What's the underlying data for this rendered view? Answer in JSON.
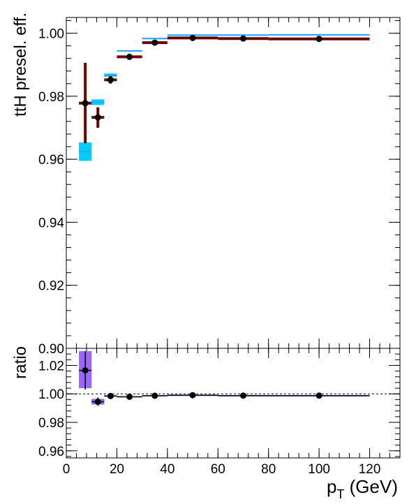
{
  "chart_data": {
    "type": "scatter",
    "x_axis": {
      "label": "p",
      "label_sub": "T",
      "label_units": " (GeV)",
      "range": [
        0,
        132
      ],
      "major_ticks": [
        0,
        20,
        40,
        60,
        80,
        100,
        120
      ],
      "tick_labels": [
        "0",
        "20",
        "40",
        "60",
        "80",
        "100",
        "120"
      ],
      "minor_step": 4
    },
    "top_panel": {
      "ylabel": "ttH presel. eff.",
      "ylim": [
        0.9,
        1.005
      ],
      "major_ticks": [
        0.9,
        0.92,
        0.94,
        0.96,
        0.98,
        1.0
      ],
      "tick_labels": [
        "0.90",
        "0.92",
        "0.94",
        "0.96",
        "0.98",
        "1.00"
      ],
      "minor_step": 0.004,
      "series": [
        {
          "role": "reference-band",
          "color": "#00ccff",
          "bins": [
            {
              "x_lo": 5,
              "x_hi": 10,
              "y_lo": 0.9595,
              "y_hi": 0.9653
            },
            {
              "x_lo": 10,
              "x_hi": 15,
              "y_lo": 0.9772,
              "y_hi": 0.979
            },
            {
              "x_lo": 15,
              "x_hi": 20,
              "y_lo": 0.9862,
              "y_hi": 0.9872
            },
            {
              "x_lo": 20,
              "x_hi": 30,
              "y_lo": 0.9942,
              "y_hi": 0.9946
            },
            {
              "x_lo": 30,
              "x_hi": 40,
              "y_lo": 0.9982,
              "y_hi": 0.9985
            },
            {
              "x_lo": 40,
              "x_hi": 60,
              "y_lo": 0.9993,
              "y_hi": 0.9996
            },
            {
              "x_lo": 60,
              "x_hi": 80,
              "y_lo": 0.9993,
              "y_hi": 0.9996
            },
            {
              "x_lo": 80,
              "x_hi": 120,
              "y_lo": 0.9994,
              "y_hi": 0.9997
            }
          ],
          "line_color": "#3399ff"
        },
        {
          "role": "measurement",
          "band_color": "#6a0000",
          "marker_color": "#000000",
          "points": [
            {
              "x": 7.5,
              "x_lo": 5,
              "x_hi": 10,
              "y": 0.9778,
              "y_lo": 0.9651,
              "y_hi": 0.9906
            },
            {
              "x": 12.5,
              "x_lo": 10,
              "x_hi": 15,
              "y": 0.9733,
              "y_lo": 0.97,
              "y_hi": 0.9765
            },
            {
              "x": 17.5,
              "x_lo": 15,
              "x_hi": 20,
              "y": 0.9852,
              "y_lo": 0.984,
              "y_hi": 0.9864
            },
            {
              "x": 25,
              "x_lo": 20,
              "x_hi": 30,
              "y": 0.9925,
              "y_lo": 0.9921,
              "y_hi": 0.9929
            },
            {
              "x": 35,
              "x_lo": 30,
              "x_hi": 40,
              "y": 0.997,
              "y_lo": 0.9967,
              "y_hi": 0.9973
            },
            {
              "x": 50,
              "x_lo": 40,
              "x_hi": 60,
              "y": 0.9985,
              "y_lo": 0.9983,
              "y_hi": 0.9987
            },
            {
              "x": 70,
              "x_lo": 60,
              "x_hi": 80,
              "y": 0.9983,
              "y_lo": 0.9981,
              "y_hi": 0.9985
            },
            {
              "x": 100,
              "x_lo": 80,
              "x_hi": 120,
              "y": 0.9982,
              "y_lo": 0.998,
              "y_hi": 0.9984
            }
          ]
        }
      ]
    },
    "ratio_panel": {
      "ylabel": "ratio",
      "ylim": [
        0.955,
        1.032
      ],
      "major_ticks": [
        0.96,
        0.98,
        1.0,
        1.02
      ],
      "tick_labels": [
        "0.96",
        "0.98",
        "1.00",
        "1.02"
      ],
      "minor_step": 0.004,
      "reference_line": 1.0,
      "band_color": "#9966ff",
      "points": [
        {
          "x": 7.5,
          "x_lo": 5,
          "x_hi": 10,
          "y": 1.0165,
          "y_lo": 1.003,
          "y_hi": 1.03,
          "band_lo": 1.004,
          "band_hi": 1.03
        },
        {
          "x": 12.5,
          "x_lo": 10,
          "x_hi": 15,
          "y": 0.9945,
          "y_lo": 0.9915,
          "y_hi": 0.9975,
          "band_lo": 0.9925,
          "band_hi": 0.9965
        },
        {
          "x": 17.5,
          "x_lo": 15,
          "x_hi": 20,
          "y": 0.9985,
          "y_lo": 0.9975,
          "y_hi": 0.9995,
          "band_lo": 0.998,
          "band_hi": 0.999
        },
        {
          "x": 25,
          "x_lo": 20,
          "x_hi": 30,
          "y": 0.998,
          "y_lo": 0.9975,
          "y_hi": 0.9985,
          "band_lo": 0.9978,
          "band_hi": 0.9982
        },
        {
          "x": 35,
          "x_lo": 30,
          "x_hi": 40,
          "y": 0.9987,
          "y_lo": 0.9983,
          "y_hi": 0.9991,
          "band_lo": 0.9985,
          "band_hi": 0.9989
        },
        {
          "x": 50,
          "x_lo": 40,
          "x_hi": 60,
          "y": 0.9991,
          "y_lo": 0.9989,
          "y_hi": 0.9993,
          "band_lo": 0.999,
          "band_hi": 0.9992
        },
        {
          "x": 70,
          "x_lo": 60,
          "x_hi": 80,
          "y": 0.9988,
          "y_lo": 0.9986,
          "y_hi": 0.999,
          "band_lo": 0.9987,
          "band_hi": 0.9989
        },
        {
          "x": 100,
          "x_lo": 80,
          "x_hi": 120,
          "y": 0.9988,
          "y_lo": 0.9986,
          "y_hi": 0.999,
          "band_lo": 0.9987,
          "band_hi": 0.9989
        }
      ]
    },
    "grid": false,
    "legend": "none"
  }
}
